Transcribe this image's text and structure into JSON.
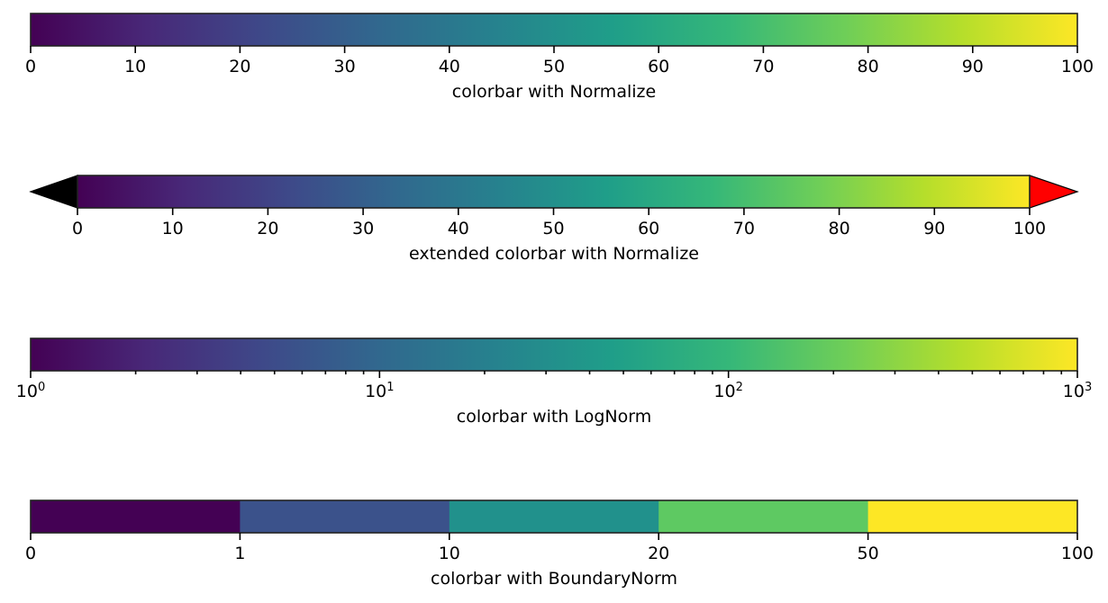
{
  "chart_data": [
    {
      "type": "colorbar",
      "title": "",
      "xlabel": "colorbar with Normalize",
      "colormap": "viridis",
      "norm": "Normalize",
      "range": [
        0,
        100
      ],
      "ticks": [
        0,
        10,
        20,
        30,
        40,
        50,
        60,
        70,
        80,
        90,
        100
      ],
      "tick_labels": [
        "0",
        "10",
        "20",
        "30",
        "40",
        "50",
        "60",
        "70",
        "80",
        "90",
        "100"
      ],
      "extend": "neither"
    },
    {
      "type": "colorbar",
      "title": "",
      "xlabel": "extended colorbar with Normalize",
      "colormap": "viridis",
      "norm": "Normalize",
      "range": [
        0,
        100
      ],
      "ticks": [
        0,
        10,
        20,
        30,
        40,
        50,
        60,
        70,
        80,
        90,
        100
      ],
      "tick_labels": [
        "0",
        "10",
        "20",
        "30",
        "40",
        "50",
        "60",
        "70",
        "80",
        "90",
        "100"
      ],
      "extend": "both",
      "under_color": "#000000",
      "over_color": "#ff0000"
    },
    {
      "type": "colorbar",
      "title": "",
      "xlabel": "colorbar with LogNorm",
      "colormap": "viridis",
      "norm": "LogNorm",
      "range": [
        1,
        1000
      ],
      "ticks": [
        1,
        10,
        100,
        1000
      ],
      "tick_labels": [
        {
          "base": "10",
          "exp": "0"
        },
        {
          "base": "10",
          "exp": "1"
        },
        {
          "base": "10",
          "exp": "2"
        },
        {
          "base": "10",
          "exp": "3"
        }
      ],
      "minor_ticks": true,
      "extend": "neither"
    },
    {
      "type": "colorbar",
      "title": "",
      "xlabel": "colorbar with BoundaryNorm",
      "colormap": "viridis",
      "norm": "BoundaryNorm",
      "boundaries": [
        0,
        1,
        10,
        20,
        50,
        100
      ],
      "tick_labels": [
        "0",
        "1",
        "10",
        "20",
        "50",
        "100"
      ],
      "segment_colors": [
        "#440154",
        "#3b528b",
        "#21918c",
        "#5ec962",
        "#fde725"
      ],
      "extend": "neither"
    }
  ],
  "colormap_stops": [
    "#440154",
    "#482878",
    "#3e4989",
    "#31688e",
    "#26828e",
    "#1f9e89",
    "#35b779",
    "#6ece58",
    "#b5de2b",
    "#fde725"
  ]
}
